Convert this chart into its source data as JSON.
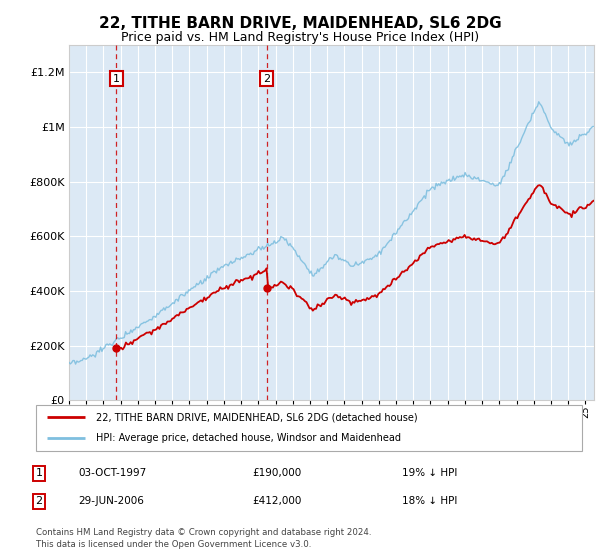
{
  "title": "22, TITHE BARN DRIVE, MAIDENHEAD, SL6 2DG",
  "subtitle": "Price paid vs. HM Land Registry's House Price Index (HPI)",
  "title_fontsize": 11,
  "subtitle_fontsize": 9,
  "bg_color": "#ffffff",
  "plot_bg_color": "#dce9f5",
  "grid_color": "#ffffff",
  "hpi_color": "#7fbfdf",
  "price_color": "#cc0000",
  "ylim": [
    0,
    1300000
  ],
  "yticks": [
    0,
    200000,
    400000,
    600000,
    800000,
    1000000,
    1200000
  ],
  "ytick_labels": [
    "£0",
    "£200K",
    "£400K",
    "£600K",
    "£800K",
    "£1M",
    "£1.2M"
  ],
  "sale1_date": 1997.75,
  "sale1_price": 190000,
  "sale2_date": 2006.49,
  "sale2_price": 412000,
  "legend_line1": "22, TITHE BARN DRIVE, MAIDENHEAD, SL6 2DG (detached house)",
  "legend_line2": "HPI: Average price, detached house, Windsor and Maidenhead",
  "table_row1": [
    "1",
    "03-OCT-1997",
    "£190,000",
    "19% ↓ HPI"
  ],
  "table_row2": [
    "2",
    "29-JUN-2006",
    "£412,000",
    "18% ↓ HPI"
  ],
  "footer": "Contains HM Land Registry data © Crown copyright and database right 2024.\nThis data is licensed under the Open Government Licence v3.0.",
  "xmin": 1995,
  "xmax": 2025.5
}
